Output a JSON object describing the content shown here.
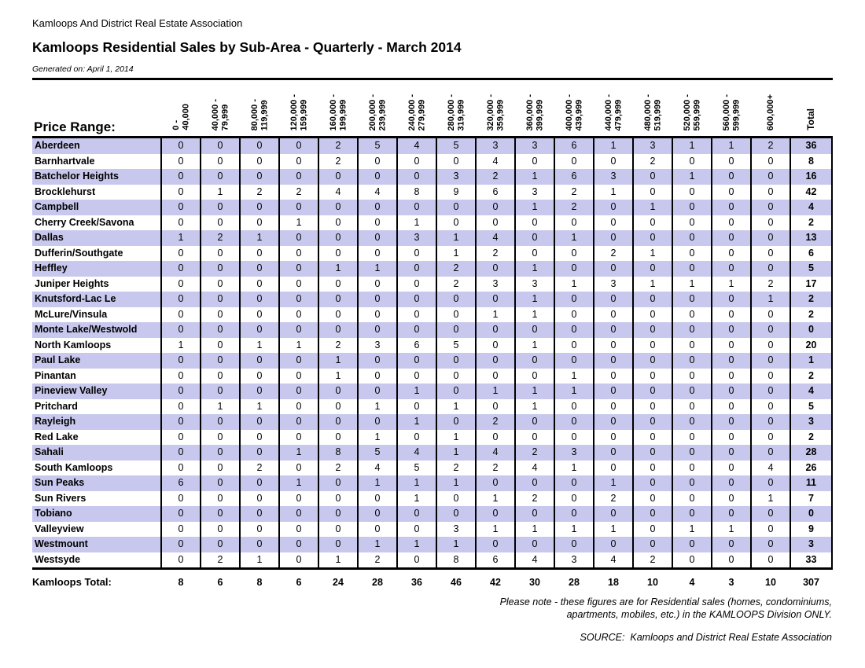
{
  "page": {
    "association": "Kamloops And District Real Estate Association",
    "title": "Kamloops Residential Sales by Sub-Area - Quarterly - March 2014",
    "generated": "Generated on: April 1, 2014"
  },
  "table": {
    "row_header_label": "Price Range:",
    "columns": [
      "0 -\n40,000",
      "40,000 -\n79,999",
      "80,000 -\n119,999",
      "120,000 -\n159,999",
      "160,000 -\n199,999",
      "200,000 -\n239,999",
      "240,000 -\n279,999",
      "280,000 -\n319,999",
      "320,000 -\n359,999",
      "360,000 -\n399,999",
      "400,000 -\n439,999",
      "440,000 -\n479,999",
      "480,000 -\n519,999",
      "520,000 -\n559,999",
      "560,000 -\n599,999",
      "600,000+"
    ],
    "total_label": "Total",
    "rows": [
      {
        "name": "Aberdeen",
        "values": [
          0,
          0,
          0,
          0,
          2,
          5,
          4,
          5,
          3,
          3,
          6,
          1,
          3,
          1,
          1,
          2
        ],
        "total": 36
      },
      {
        "name": "Barnhartvale",
        "values": [
          0,
          0,
          0,
          0,
          2,
          0,
          0,
          0,
          4,
          0,
          0,
          0,
          2,
          0,
          0,
          0
        ],
        "total": 8
      },
      {
        "name": "Batchelor Heights",
        "values": [
          0,
          0,
          0,
          0,
          0,
          0,
          0,
          3,
          2,
          1,
          6,
          3,
          0,
          1,
          0,
          0
        ],
        "total": 16
      },
      {
        "name": "Brocklehurst",
        "values": [
          0,
          1,
          2,
          2,
          4,
          4,
          8,
          9,
          6,
          3,
          2,
          1,
          0,
          0,
          0,
          0
        ],
        "total": 42
      },
      {
        "name": "Campbell",
        "values": [
          0,
          0,
          0,
          0,
          0,
          0,
          0,
          0,
          0,
          1,
          2,
          0,
          1,
          0,
          0,
          0
        ],
        "total": 4
      },
      {
        "name": "Cherry Creek/Savona",
        "values": [
          0,
          0,
          0,
          1,
          0,
          0,
          1,
          0,
          0,
          0,
          0,
          0,
          0,
          0,
          0,
          0
        ],
        "total": 2
      },
      {
        "name": "Dallas",
        "values": [
          1,
          2,
          1,
          0,
          0,
          0,
          3,
          1,
          4,
          0,
          1,
          0,
          0,
          0,
          0,
          0
        ],
        "total": 13
      },
      {
        "name": "Dufferin/Southgate",
        "values": [
          0,
          0,
          0,
          0,
          0,
          0,
          0,
          1,
          2,
          0,
          0,
          2,
          1,
          0,
          0,
          0
        ],
        "total": 6
      },
      {
        "name": "Heffley",
        "values": [
          0,
          0,
          0,
          0,
          1,
          1,
          0,
          2,
          0,
          1,
          0,
          0,
          0,
          0,
          0,
          0
        ],
        "total": 5
      },
      {
        "name": "Juniper Heights",
        "values": [
          0,
          0,
          0,
          0,
          0,
          0,
          0,
          2,
          3,
          3,
          1,
          3,
          1,
          1,
          1,
          2
        ],
        "total": 17
      },
      {
        "name": "Knutsford-Lac Le",
        "values": [
          0,
          0,
          0,
          0,
          0,
          0,
          0,
          0,
          0,
          1,
          0,
          0,
          0,
          0,
          0,
          1
        ],
        "total": 2
      },
      {
        "name": "McLure/Vinsula",
        "values": [
          0,
          0,
          0,
          0,
          0,
          0,
          0,
          0,
          1,
          1,
          0,
          0,
          0,
          0,
          0,
          0
        ],
        "total": 2
      },
      {
        "name": "Monte Lake/Westwold",
        "values": [
          0,
          0,
          0,
          0,
          0,
          0,
          0,
          0,
          0,
          0,
          0,
          0,
          0,
          0,
          0,
          0
        ],
        "total": 0
      },
      {
        "name": "North Kamloops",
        "values": [
          1,
          0,
          1,
          1,
          2,
          3,
          6,
          5,
          0,
          1,
          0,
          0,
          0,
          0,
          0,
          0
        ],
        "total": 20
      },
      {
        "name": "Paul Lake",
        "values": [
          0,
          0,
          0,
          0,
          1,
          0,
          0,
          0,
          0,
          0,
          0,
          0,
          0,
          0,
          0,
          0
        ],
        "total": 1
      },
      {
        "name": "Pinantan",
        "values": [
          0,
          0,
          0,
          0,
          1,
          0,
          0,
          0,
          0,
          0,
          1,
          0,
          0,
          0,
          0,
          0
        ],
        "total": 2
      },
      {
        "name": "Pineview Valley",
        "values": [
          0,
          0,
          0,
          0,
          0,
          0,
          1,
          0,
          1,
          1,
          1,
          0,
          0,
          0,
          0,
          0
        ],
        "total": 4
      },
      {
        "name": "Pritchard",
        "values": [
          0,
          1,
          1,
          0,
          0,
          1,
          0,
          1,
          0,
          1,
          0,
          0,
          0,
          0,
          0,
          0
        ],
        "total": 5
      },
      {
        "name": "Rayleigh",
        "values": [
          0,
          0,
          0,
          0,
          0,
          0,
          1,
          0,
          2,
          0,
          0,
          0,
          0,
          0,
          0,
          0
        ],
        "total": 3
      },
      {
        "name": "Red Lake",
        "values": [
          0,
          0,
          0,
          0,
          0,
          1,
          0,
          1,
          0,
          0,
          0,
          0,
          0,
          0,
          0,
          0
        ],
        "total": 2
      },
      {
        "name": "Sahali",
        "values": [
          0,
          0,
          0,
          1,
          8,
          5,
          4,
          1,
          4,
          2,
          3,
          0,
          0,
          0,
          0,
          0
        ],
        "total": 28
      },
      {
        "name": "South Kamloops",
        "values": [
          0,
          0,
          2,
          0,
          2,
          4,
          5,
          2,
          2,
          4,
          1,
          0,
          0,
          0,
          0,
          4
        ],
        "total": 26
      },
      {
        "name": "Sun Peaks",
        "values": [
          6,
          0,
          0,
          1,
          0,
          1,
          1,
          1,
          0,
          0,
          0,
          1,
          0,
          0,
          0,
          0
        ],
        "total": 11
      },
      {
        "name": "Sun Rivers",
        "values": [
          0,
          0,
          0,
          0,
          0,
          0,
          1,
          0,
          1,
          2,
          0,
          2,
          0,
          0,
          0,
          1
        ],
        "total": 7
      },
      {
        "name": "Tobiano",
        "values": [
          0,
          0,
          0,
          0,
          0,
          0,
          0,
          0,
          0,
          0,
          0,
          0,
          0,
          0,
          0,
          0
        ],
        "total": 0
      },
      {
        "name": "Valleyview",
        "values": [
          0,
          0,
          0,
          0,
          0,
          0,
          0,
          3,
          1,
          1,
          1,
          1,
          0,
          1,
          1,
          0
        ],
        "total": 9
      },
      {
        "name": "Westmount",
        "values": [
          0,
          0,
          0,
          0,
          0,
          1,
          1,
          1,
          0,
          0,
          0,
          0,
          0,
          0,
          0,
          0
        ],
        "total": 3
      },
      {
        "name": "Westsyde",
        "values": [
          0,
          2,
          1,
          0,
          1,
          2,
          0,
          8,
          6,
          4,
          3,
          4,
          2,
          0,
          0,
          0
        ],
        "total": 33
      }
    ],
    "totals": {
      "label": "Kamloops Total:",
      "values": [
        8,
        6,
        8,
        6,
        24,
        28,
        36,
        46,
        42,
        30,
        28,
        18,
        10,
        4,
        3,
        10
      ],
      "total": 307
    }
  },
  "footer": {
    "note": "Please note - these figures are for Residential sales (homes, condominiums,\napartments, mobiles, etc.) in the KAMLOOPS Division ONLY.",
    "source": "SOURCE:  Kamloops and District Real Estate Association"
  },
  "colors": {
    "row_stripe": "#c8c8ee",
    "border": "#000000",
    "background": "#ffffff"
  }
}
